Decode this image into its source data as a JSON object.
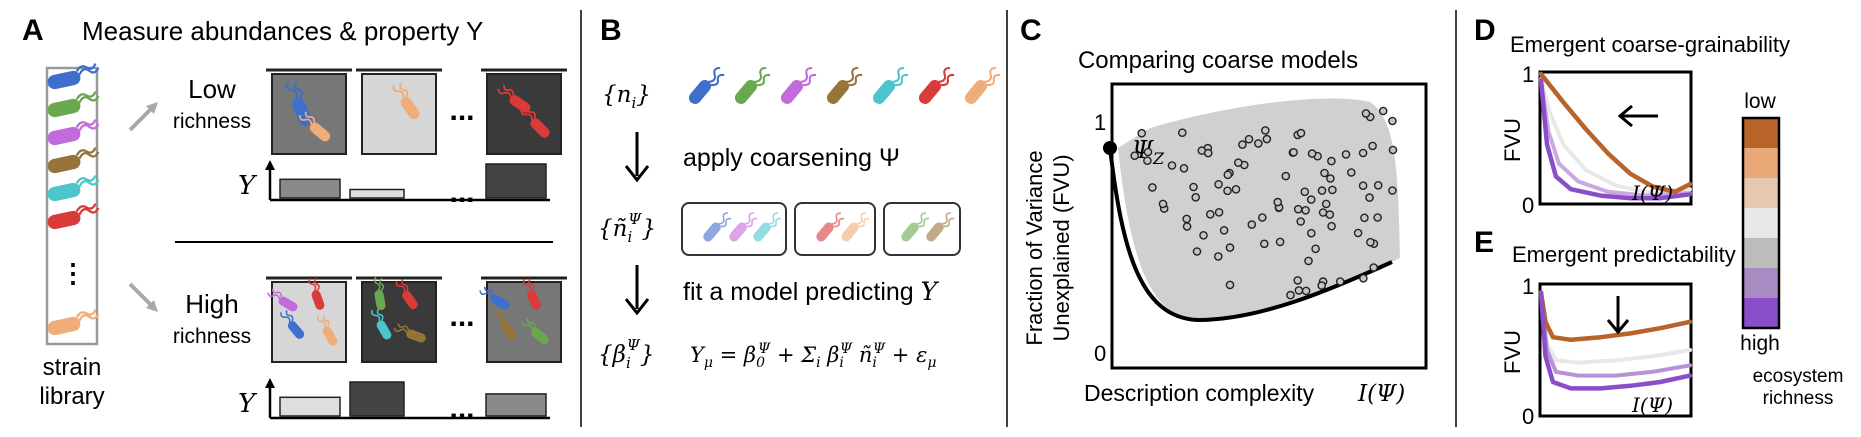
{
  "panel_a": {
    "letter": "A",
    "title": "Measure abundances & property Y",
    "strain_library": {
      "line1": "strain",
      "line2": "library"
    },
    "low_richness": {
      "line1": "Low",
      "line2": "richness"
    },
    "high_richness": {
      "line1": "High",
      "line2": "richness"
    },
    "y_symbol": "Y",
    "ellipsis": "...",
    "low_bar_values": [
      0.55,
      0.25,
      1.0
    ],
    "high_bar_values": [
      0.55,
      1.0,
      0.65
    ]
  },
  "panel_b": {
    "letter": "B",
    "n_label": "{n_i}",
    "step1": "apply coarsening Ψ",
    "ntilde_label": "{ñ_i^Ψ}",
    "step2": "fit a model predicting Y",
    "beta_label": "{β_i^Ψ}",
    "equation": "Y_μ = β_0^Ψ + Σ_i β_i^Ψ ñ_i^Ψ + ε_μ"
  },
  "panel_c": {
    "letter": "C",
    "title": "Comparing coarse models",
    "ylabel_line1": "Fraction of Variance",
    "ylabel_line2": "Unexplained (FVU)",
    "xlabel": "Description complexity",
    "xlabel_math": "I(Ψ)",
    "tick_1": "1",
    "tick_0": "0",
    "psi_z": "Ψ_Z"
  },
  "panel_d": {
    "letter": "D",
    "title": "Emergent coarse-grainability",
    "ylabel": "FVU",
    "tick_1": "1",
    "tick_0": "0",
    "xlabel_math": "I(Ψ)"
  },
  "panel_e": {
    "letter": "E",
    "title": "Emergent predictability",
    "ylabel": "FVU",
    "tick_1": "1",
    "tick_0": "0",
    "xlabel_math": "I(Ψ)"
  },
  "legend": {
    "low": "low",
    "high": "high",
    "caption_line1": "ecosystem",
    "caption_line2": "richness",
    "colors": [
      "#b8632a",
      "#e9a878",
      "#e6c7b1",
      "#e8e8e8",
      "#bcbcbc",
      "#a98bc4",
      "#8a4fc8"
    ]
  },
  "strain_colors": [
    "#3f6fcc",
    "#6aa84f",
    "#c26bdc",
    "#96743a",
    "#4cc6cc",
    "#d93a3a",
    "#f0ad7a"
  ],
  "chart_data": [
    {
      "type": "line",
      "title": "Emergent coarse-grainability",
      "xlabel": "I(Ψ)",
      "ylabel": "FVU",
      "ylim": [
        0,
        1
      ],
      "series": [
        {
          "name": "low",
          "color": "#b8632a",
          "x": [
            0,
            0.15,
            0.3,
            0.45,
            0.6,
            0.75,
            0.9,
            1.0
          ],
          "y": [
            1.0,
            0.78,
            0.57,
            0.38,
            0.22,
            0.12,
            0.08,
            0.14
          ]
        },
        {
          "name": "high",
          "color": "#8a4fc8",
          "x": [
            0,
            0.04,
            0.1,
            0.2,
            0.4,
            0.6,
            0.8,
            1.0
          ],
          "y": [
            0.95,
            0.45,
            0.2,
            0.1,
            0.05,
            0.03,
            0.03,
            0.06
          ]
        }
      ]
    },
    {
      "type": "line",
      "title": "Emergent predictability",
      "xlabel": "I(Ψ)",
      "ylabel": "FVU",
      "ylim": [
        0,
        1
      ],
      "series": [
        {
          "name": "low",
          "color": "#b8632a",
          "x": [
            0,
            0.03,
            0.08,
            0.2,
            0.4,
            0.6,
            0.8,
            1.0
          ],
          "y": [
            0.95,
            0.72,
            0.6,
            0.58,
            0.6,
            0.63,
            0.67,
            0.72
          ]
        },
        {
          "name": "high",
          "color": "#8a4fc8",
          "x": [
            0,
            0.03,
            0.08,
            0.2,
            0.4,
            0.6,
            0.8,
            1.0
          ],
          "y": [
            0.95,
            0.45,
            0.25,
            0.2,
            0.2,
            0.22,
            0.25,
            0.3
          ]
        }
      ]
    }
  ]
}
